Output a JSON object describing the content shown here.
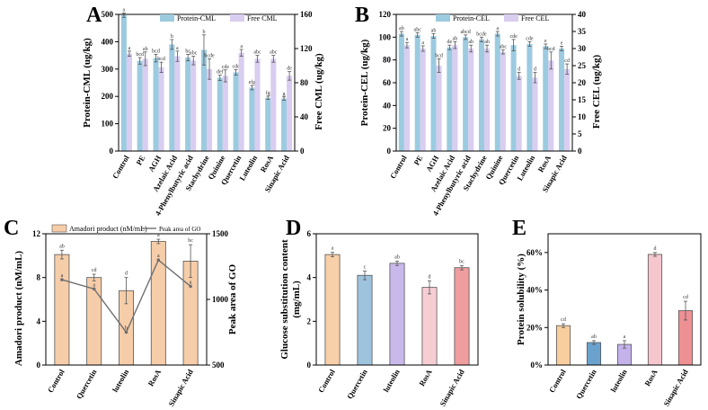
{
  "colors": {
    "protein_bar": "#9ccbe0",
    "free_bar": "#d9cdf0",
    "amadori_bar": "#f6cda9",
    "line": "#6f6f6f",
    "bar_control": "#f7cfa8",
    "bar_quercetin": "#9ec3dd",
    "bar_luteolin": "#c9b9ea",
    "bar_rosa": "#f6cdd2",
    "bar_sinapic": "#ef9d9f",
    "bar_e_control": "#f8ce9f",
    "bar_e_quercetin": "#6ba2cd",
    "bar_e_luteolin": "#c4b2ea",
    "bar_e_rosa": "#f6c6ce",
    "bar_e_sinapic": "#ee9093",
    "edge": "#555555"
  },
  "chart_data": [
    {
      "panel": "A",
      "type": "bar",
      "categories": [
        "Control",
        "PE",
        "AGH",
        "Azelaic Acid",
        "4-Phenylbutyric acid",
        "Stachydrine",
        "Quinine",
        "Quercetin",
        "Luteolin",
        "RosA",
        "Sinapic Acid"
      ],
      "series": [
        {
          "name": "Protein-CML",
          "axis": "left",
          "values": [
            497,
            330,
            340,
            390,
            342,
            370,
            268,
            288,
            232,
            195,
            192
          ],
          "errors": [
            8,
            12,
            14,
            18,
            12,
            55,
            10,
            10,
            8,
            6,
            6
          ],
          "labels": [
            "a",
            "bcd",
            "bcd",
            "b",
            "bc",
            "b",
            "def",
            "cde",
            "efg",
            "fg",
            "g"
          ]
        },
        {
          "name": "Free CML",
          "axis": "right",
          "values": [
            114,
            108,
            98,
            111,
            106,
            96,
            88,
            115,
            108,
            108,
            88
          ],
          "errors": [
            3,
            8,
            6,
            6,
            5,
            12,
            7,
            4,
            4,
            4,
            5
          ],
          "labels": [
            "a",
            "ab",
            "bcd",
            "a",
            "abc",
            "bcde",
            "cde",
            "a",
            "abc",
            "abc",
            "de"
          ]
        }
      ],
      "ylabel": "Protein-CML (ug/kg)",
      "ylim": [
        0,
        500
      ],
      "yticks": [
        0,
        100,
        200,
        300,
        400,
        500
      ],
      "y2label": "Free CML (ug/kg)",
      "y2lim": [
        0,
        160
      ],
      "y2ticks": [
        0,
        40,
        80,
        120,
        160
      ],
      "legend": "top-right"
    },
    {
      "panel": "B",
      "type": "bar",
      "categories": [
        "Control",
        "PE",
        "AGH",
        "Azelaic Acid",
        "4-Phenylbutyric acid",
        "Stachydrine",
        "Quinine",
        "Quercetin",
        "Luteolin",
        "RosA",
        "Sinapic Acid"
      ],
      "series": [
        {
          "name": "Protein-CEL",
          "axis": "left",
          "values": [
            103,
            102,
            101,
            91,
            100,
            98,
            103,
            93,
            94,
            92,
            90
          ],
          "errors": [
            2,
            2,
            2,
            2,
            2,
            2,
            2,
            5,
            2,
            2,
            2
          ],
          "labels": [
            "ab",
            "abc",
            "ab",
            "de",
            "abcd",
            "bcde",
            "a",
            "cde",
            "cde",
            "e",
            "e"
          ]
        },
        {
          "name": "Free CEL",
          "axis": "right",
          "values": [
            31,
            30,
            25,
            31,
            30,
            30,
            29,
            22,
            21.5,
            26.5,
            24
          ],
          "errors": [
            0.8,
            0.8,
            2,
            1,
            1,
            1,
            0.6,
            1,
            1.5,
            2.5,
            1.5
          ],
          "labels": [
            "a",
            "a",
            "bcd",
            "ab",
            "ab",
            "ab",
            "abc",
            "d",
            "d",
            "bcd",
            "cd"
          ]
        }
      ],
      "ylabel": "Protein-CEL (ug/kg)",
      "ylim": [
        0,
        120
      ],
      "yticks": [
        0,
        20,
        40,
        60,
        80,
        100,
        120
      ],
      "y2label": "Free CEL (ug/kg)",
      "y2lim": [
        0,
        40
      ],
      "y2ticks": [
        0,
        5,
        10,
        15,
        20,
        25,
        30,
        35,
        40
      ],
      "legend": "top-right"
    },
    {
      "panel": "C",
      "type": "bar",
      "categories": [
        "Control",
        "Quercetin",
        "luteolin",
        "RosA",
        "Sinapic Acid"
      ],
      "series": [
        {
          "name": "Amadori product (nM/mL)",
          "axis": "left",
          "values": [
            10.1,
            8.0,
            6.8,
            11.3,
            9.5
          ],
          "errors": [
            0.4,
            0.3,
            1.2,
            0.2,
            1.5
          ],
          "labels": [
            "ab",
            "cd",
            "d",
            "a",
            "bc"
          ]
        },
        {
          "name": "Peak area of GO",
          "axis": "right",
          "values": [
            1150,
            1080,
            750,
            1300,
            1100
          ],
          "labels": [
            "a",
            "a",
            "b",
            "a",
            "a"
          ]
        }
      ],
      "ylabel": "Amadori product (nM/mL)",
      "ylim": [
        0,
        12
      ],
      "yticks": [
        0,
        4,
        8,
        12
      ],
      "y2label": "Peak area of GO",
      "y2lim": [
        500,
        1500
      ],
      "y2ticks": [
        500,
        1000,
        1500
      ],
      "legend": "top"
    },
    {
      "panel": "D",
      "type": "bar",
      "categories": [
        "Control",
        "Quercetin",
        "luteolin",
        "RosA",
        "Sinapic Acid"
      ],
      "series": [
        {
          "name": "Glucose substitution content",
          "values": [
            5.05,
            4.1,
            4.65,
            3.55,
            4.45
          ],
          "errors": [
            0.1,
            0.2,
            0.1,
            0.3,
            0.1
          ],
          "labels": [
            "a",
            "c",
            "ab",
            "d",
            "bc"
          ]
        }
      ],
      "ylabel": "Glucose substitution content (mg/mL)",
      "ylim": [
        0,
        6
      ],
      "yticks": [
        0,
        2,
        4,
        6
      ]
    },
    {
      "panel": "E",
      "type": "bar",
      "categories": [
        "Control",
        "Quercetin",
        "luteolin",
        "RosA",
        "Sinapic Acid"
      ],
      "series": [
        {
          "name": "Protein solubility",
          "values": [
            21,
            12,
            11,
            59,
            29
          ],
          "errors": [
            1,
            1,
            2,
            1,
            5
          ],
          "labels": [
            "cd",
            "ab",
            "a",
            "d",
            "cd"
          ]
        }
      ],
      "ylabel": "Protein solubility (%)",
      "ylim": [
        0,
        70
      ],
      "yticks": [
        "0%",
        "20%",
        "40%",
        "60%"
      ],
      "ytick_values": [
        0,
        20,
        40,
        60
      ]
    }
  ]
}
